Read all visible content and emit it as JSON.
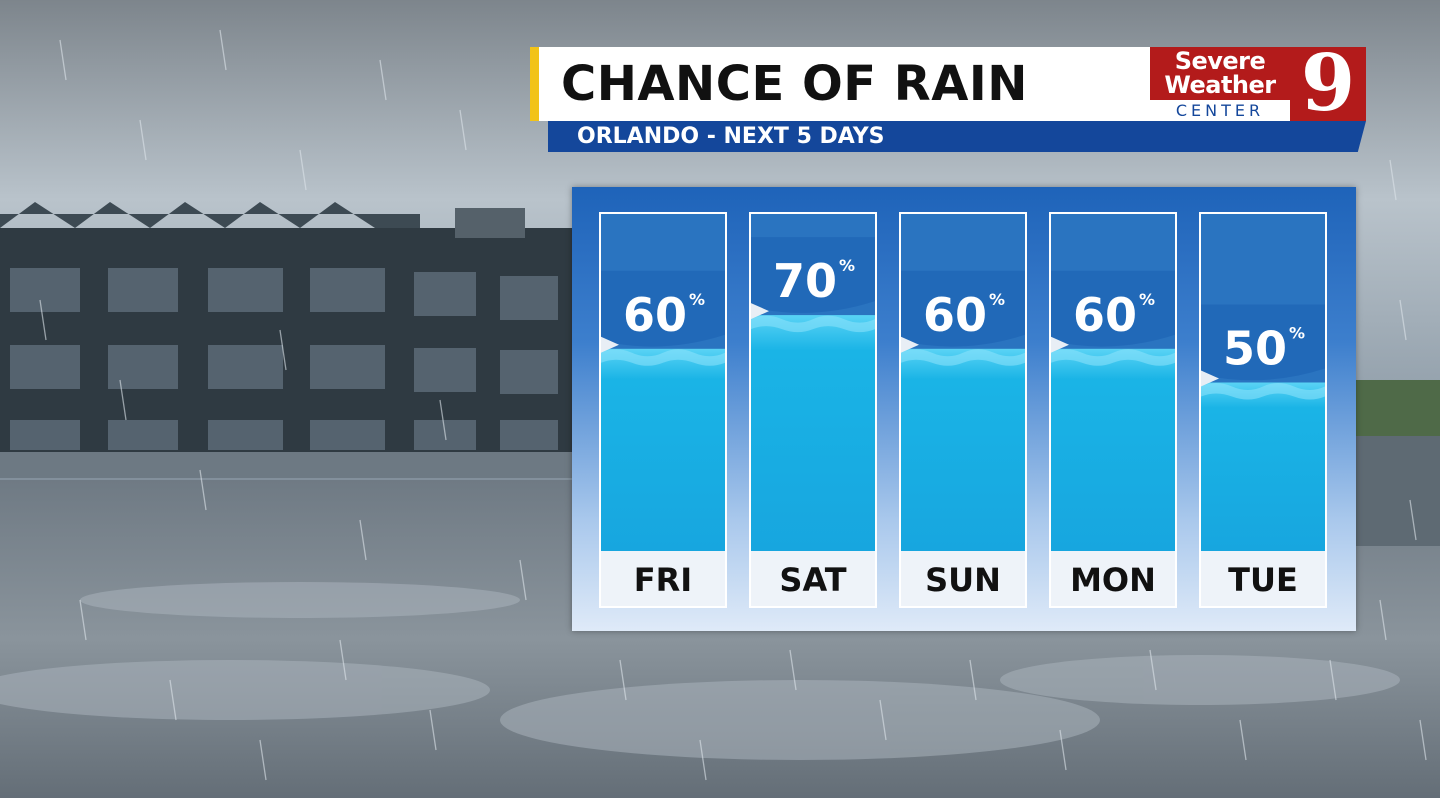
{
  "header": {
    "title": "CHANCE OF RAIN",
    "subtitle": "ORLANDO - NEXT 5 DAYS",
    "accent_color": "#f2c318",
    "subtitle_color": "#14479b"
  },
  "logo": {
    "line1": "Severe",
    "line2": "Weather",
    "line3": "CENTER",
    "number": "9",
    "color": "#b31b1b"
  },
  "chart_data": {
    "type": "bar",
    "categories": [
      "FRI",
      "SAT",
      "SUN",
      "MON",
      "TUE"
    ],
    "values": [
      60,
      70,
      60,
      60,
      50
    ],
    "unit": "%",
    "ylim": [
      0,
      100
    ],
    "title": "CHANCE OF RAIN",
    "subtitle": "ORLANDO - NEXT 5 DAYS",
    "xlabel": "",
    "ylabel": "",
    "grid": false,
    "legend": "none",
    "fill_color": "#1ab4e6",
    "track_color": "#2a74c0"
  }
}
